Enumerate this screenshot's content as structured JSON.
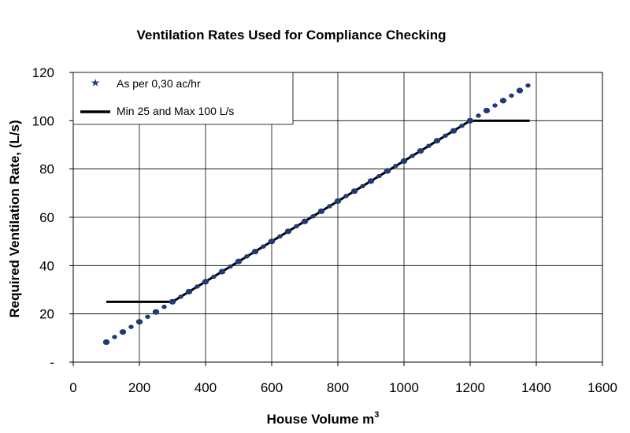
{
  "chart_data": {
    "type": "line",
    "title": "Ventilation Rates Used for Compliance Checking",
    "xlabel": "House Volume m",
    "xlabel_superscript": "3",
    "ylabel": "Required Ventilation Rate, (L/s)",
    "xlim": [
      0,
      1600
    ],
    "ylim": [
      0,
      120
    ],
    "x_ticks": [
      0,
      200,
      400,
      600,
      800,
      1000,
      1200,
      1400,
      1600
    ],
    "y_ticks": [
      0,
      20,
      40,
      60,
      80,
      100,
      120
    ],
    "y_tick_labels": [
      "-",
      "20",
      "40",
      "60",
      "80",
      "100",
      "120"
    ],
    "grid": true,
    "legend_position": "top-left",
    "series": [
      {
        "name": "As per 0,30 ac/hr",
        "style": "markers",
        "color": "#1f3a7a",
        "x": [
          100,
          125,
          150,
          175,
          200,
          225,
          250,
          275,
          300,
          325,
          350,
          375,
          400,
          425,
          450,
          475,
          500,
          525,
          550,
          575,
          600,
          625,
          650,
          675,
          700,
          725,
          750,
          775,
          800,
          825,
          850,
          875,
          900,
          925,
          950,
          975,
          1000,
          1025,
          1050,
          1075,
          1100,
          1125,
          1150,
          1175,
          1200,
          1225,
          1250,
          1275,
          1300,
          1325,
          1350,
          1375
        ],
        "y": [
          8.3,
          10.4,
          12.5,
          14.6,
          16.7,
          18.8,
          20.8,
          22.9,
          25.0,
          27.1,
          29.2,
          31.3,
          33.3,
          35.4,
          37.5,
          39.6,
          41.7,
          43.8,
          45.8,
          47.9,
          50.0,
          52.1,
          54.2,
          56.3,
          58.3,
          60.4,
          62.5,
          64.6,
          66.7,
          68.8,
          70.8,
          72.9,
          75.0,
          77.1,
          79.2,
          81.3,
          83.3,
          85.4,
          87.5,
          89.6,
          91.7,
          93.8,
          95.8,
          97.9,
          100.0,
          102.1,
          104.2,
          106.3,
          108.3,
          110.4,
          112.5,
          114.6
        ]
      },
      {
        "name": "Min 25 and Max 100 L/s",
        "style": "line",
        "color": "#000000",
        "x": [
          100,
          300,
          1200,
          1380
        ],
        "y": [
          25,
          25,
          100,
          100
        ]
      }
    ]
  }
}
